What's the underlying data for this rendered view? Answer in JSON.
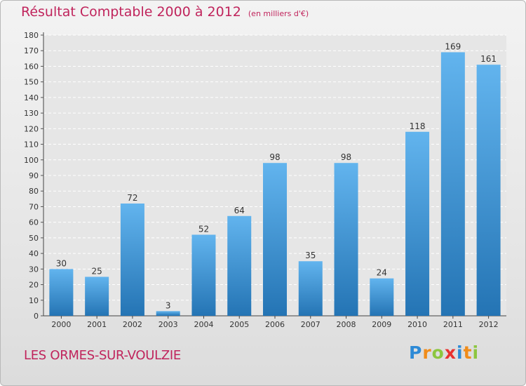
{
  "title": "Résultat Comptable 2000 à 2012",
  "subtitle": "(en milliers d'€)",
  "place": "LES ORMES-SUR-VOULZIE",
  "logo": {
    "letters": [
      "P",
      "r",
      "o",
      "x",
      "i",
      "t",
      "i"
    ],
    "colors": [
      "#2d8ad6",
      "#f08c1a",
      "#8cc63f",
      "#e8312f",
      "#2d8ad6",
      "#f08c1a",
      "#8cc63f"
    ]
  },
  "colors": {
    "bar_top": "#62b4ee",
    "bar_bottom": "#2474b4",
    "accent": "#c0245c"
  },
  "chart_data": {
    "type": "bar",
    "title": "Résultat Comptable 2000 à 2012",
    "subtitle": "(en milliers d'€)",
    "categories": [
      "2000",
      "2001",
      "2002",
      "2003",
      "2004",
      "2005",
      "2006",
      "2007",
      "2008",
      "2009",
      "2010",
      "2011",
      "2012"
    ],
    "values": [
      30,
      25,
      72,
      3,
      52,
      64,
      98,
      35,
      98,
      24,
      118,
      169,
      161
    ],
    "ylim": [
      0,
      180
    ],
    "yticks": [
      0,
      10,
      20,
      30,
      40,
      50,
      60,
      70,
      80,
      90,
      100,
      110,
      120,
      130,
      140,
      150,
      160,
      170,
      180
    ],
    "grid": true,
    "data_labels": true
  }
}
